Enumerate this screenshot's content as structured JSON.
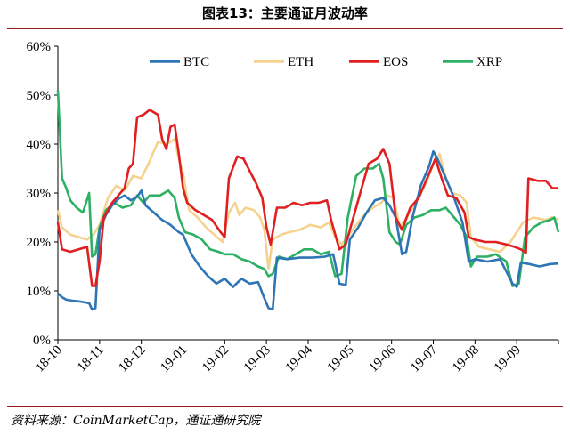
{
  "header": {
    "title": "图表13：主要通证月波动率"
  },
  "footer": {
    "source": "资料来源：CoinMarketCap，通证通研究院"
  },
  "colors": {
    "BTC": "#2e75b6",
    "ETH": "#f5d28e",
    "EOS": "#e02020",
    "XRP": "#2db063",
    "rule": "#9a1b1e"
  },
  "chart_data": {
    "type": "line",
    "title": "图表13：主要通证月波动率",
    "xlabel": "",
    "ylabel": "",
    "x_ticks": [
      "18-10",
      "18-11",
      "18-12",
      "19-01",
      "19-02",
      "19-03",
      "19-04",
      "19-05",
      "19-06",
      "19-07",
      "19-08",
      "19-09"
    ],
    "y_ticks": [
      "0%",
      "10%",
      "20%",
      "30%",
      "40%",
      "50%",
      "60%"
    ],
    "ylim": [
      0,
      60
    ],
    "xlim": [
      0,
      12
    ],
    "grid": false,
    "legend_position": "top",
    "series": [
      {
        "name": "BTC",
        "color": "#2e75b6",
        "points": [
          [
            0,
            9.5
          ],
          [
            0.1,
            8.7
          ],
          [
            0.2,
            8.2
          ],
          [
            0.35,
            8.0
          ],
          [
            0.55,
            7.8
          ],
          [
            0.75,
            7.5
          ],
          [
            0.82,
            6.2
          ],
          [
            0.9,
            6.5
          ],
          [
            1.0,
            22.5
          ],
          [
            1.15,
            25.5
          ],
          [
            1.3,
            27.5
          ],
          [
            1.45,
            28.8
          ],
          [
            1.6,
            29.5
          ],
          [
            1.75,
            28.5
          ],
          [
            1.9,
            29.2
          ],
          [
            2.0,
            30.5
          ],
          [
            2.1,
            27.5
          ],
          [
            2.3,
            26.0
          ],
          [
            2.5,
            24.5
          ],
          [
            2.7,
            23.5
          ],
          [
            2.9,
            22.0
          ],
          [
            3.0,
            21.5
          ],
          [
            3.2,
            17.5
          ],
          [
            3.4,
            15.0
          ],
          [
            3.6,
            13.0
          ],
          [
            3.8,
            11.5
          ],
          [
            4.0,
            12.5
          ],
          [
            4.2,
            10.8
          ],
          [
            4.4,
            12.5
          ],
          [
            4.6,
            11.5
          ],
          [
            4.8,
            11.8
          ],
          [
            4.95,
            8.5
          ],
          [
            5.05,
            6.5
          ],
          [
            5.15,
            6.2
          ],
          [
            5.25,
            16.8
          ],
          [
            5.5,
            16.5
          ],
          [
            5.8,
            16.8
          ],
          [
            6.1,
            16.8
          ],
          [
            6.4,
            17.0
          ],
          [
            6.6,
            17.5
          ],
          [
            6.75,
            11.5
          ],
          [
            6.9,
            11.2
          ],
          [
            7.0,
            20.5
          ],
          [
            7.2,
            23.0
          ],
          [
            7.4,
            26.0
          ],
          [
            7.6,
            28.5
          ],
          [
            7.8,
            29.0
          ],
          [
            7.95,
            27.5
          ],
          [
            8.1,
            25.0
          ],
          [
            8.25,
            17.5
          ],
          [
            8.35,
            18.0
          ],
          [
            8.5,
            25.0
          ],
          [
            8.7,
            31.5
          ],
          [
            8.9,
            35.5
          ],
          [
            9.0,
            38.5
          ],
          [
            9.1,
            37.0
          ],
          [
            9.3,
            33.0
          ],
          [
            9.5,
            29.0
          ],
          [
            9.7,
            24.0
          ],
          [
            9.85,
            16.0
          ],
          [
            10.0,
            16.5
          ],
          [
            10.3,
            16.0
          ],
          [
            10.6,
            16.5
          ],
          [
            10.9,
            11.5
          ],
          [
            11.0,
            10.8
          ],
          [
            11.1,
            15.8
          ],
          [
            11.3,
            15.5
          ],
          [
            11.55,
            15.0
          ],
          [
            11.8,
            15.5
          ],
          [
            12.0,
            15.6
          ]
        ]
      },
      {
        "name": "ETH",
        "color": "#f5d28e",
        "points": [
          [
            0,
            26.5
          ],
          [
            0.1,
            23.0
          ],
          [
            0.3,
            21.5
          ],
          [
            0.5,
            21.0
          ],
          [
            0.7,
            20.5
          ],
          [
            0.85,
            21.5
          ],
          [
            1.0,
            23.5
          ],
          [
            1.2,
            29.0
          ],
          [
            1.4,
            31.5
          ],
          [
            1.6,
            30.5
          ],
          [
            1.8,
            33.5
          ],
          [
            2.0,
            33.0
          ],
          [
            2.2,
            36.5
          ],
          [
            2.4,
            40.5
          ],
          [
            2.6,
            40.0
          ],
          [
            2.8,
            41.0
          ],
          [
            2.9,
            37.0
          ],
          [
            3.0,
            34.0
          ],
          [
            3.15,
            26.5
          ],
          [
            3.35,
            25.0
          ],
          [
            3.55,
            23.0
          ],
          [
            3.75,
            21.5
          ],
          [
            3.95,
            20.0
          ],
          [
            4.1,
            26.0
          ],
          [
            4.25,
            28.0
          ],
          [
            4.35,
            25.5
          ],
          [
            4.5,
            27.0
          ],
          [
            4.7,
            26.5
          ],
          [
            4.85,
            25.0
          ],
          [
            4.95,
            22.5
          ],
          [
            5.05,
            14.5
          ],
          [
            5.15,
            20.5
          ],
          [
            5.35,
            21.5
          ],
          [
            5.55,
            22.0
          ],
          [
            5.8,
            22.5
          ],
          [
            6.05,
            23.5
          ],
          [
            6.3,
            23.0
          ],
          [
            6.5,
            24.0
          ],
          [
            6.65,
            21.0
          ],
          [
            6.8,
            19.5
          ],
          [
            6.95,
            21.0
          ],
          [
            7.15,
            23.5
          ],
          [
            7.35,
            25.5
          ],
          [
            7.55,
            27.0
          ],
          [
            7.75,
            28.0
          ],
          [
            7.9,
            29.5
          ],
          [
            8.05,
            29.0
          ],
          [
            8.2,
            23.0
          ],
          [
            8.4,
            25.5
          ],
          [
            8.65,
            29.0
          ],
          [
            8.85,
            32.5
          ],
          [
            9.0,
            36.0
          ],
          [
            9.15,
            38.0
          ],
          [
            9.3,
            33.0
          ],
          [
            9.45,
            30.0
          ],
          [
            9.65,
            29.5
          ],
          [
            9.8,
            28.0
          ],
          [
            9.9,
            21.0
          ],
          [
            10.1,
            19.0
          ],
          [
            10.35,
            18.5
          ],
          [
            10.6,
            18.0
          ],
          [
            10.85,
            20.0
          ],
          [
            11.0,
            22.0
          ],
          [
            11.15,
            24.0
          ],
          [
            11.4,
            25.0
          ],
          [
            11.7,
            24.5
          ],
          [
            11.85,
            25.0
          ],
          [
            12.0,
            24.5
          ]
        ]
      },
      {
        "name": "EOS",
        "color": "#e02020",
        "points": [
          [
            0,
            24.0
          ],
          [
            0.1,
            18.5
          ],
          [
            0.3,
            18.0
          ],
          [
            0.5,
            18.5
          ],
          [
            0.7,
            19.0
          ],
          [
            0.82,
            11.0
          ],
          [
            0.9,
            11.0
          ],
          [
            1.0,
            16.0
          ],
          [
            1.1,
            25.0
          ],
          [
            1.3,
            28.0
          ],
          [
            1.45,
            29.5
          ],
          [
            1.6,
            31.0
          ],
          [
            1.7,
            35.0
          ],
          [
            1.8,
            36.0
          ],
          [
            1.9,
            45.5
          ],
          [
            2.05,
            46.0
          ],
          [
            2.2,
            47.0
          ],
          [
            2.4,
            46.0
          ],
          [
            2.5,
            41.0
          ],
          [
            2.6,
            39.0
          ],
          [
            2.7,
            43.5
          ],
          [
            2.8,
            44.0
          ],
          [
            2.9,
            38.0
          ],
          [
            3.0,
            31.0
          ],
          [
            3.1,
            28.0
          ],
          [
            3.3,
            26.5
          ],
          [
            3.5,
            25.5
          ],
          [
            3.7,
            24.5
          ],
          [
            3.9,
            22.0
          ],
          [
            4.0,
            21.0
          ],
          [
            4.1,
            33.0
          ],
          [
            4.3,
            37.5
          ],
          [
            4.45,
            37.0
          ],
          [
            4.6,
            34.5
          ],
          [
            4.75,
            32.0
          ],
          [
            4.9,
            29.0
          ],
          [
            5.0,
            23.0
          ],
          [
            5.1,
            19.5
          ],
          [
            5.25,
            27.0
          ],
          [
            5.45,
            27.0
          ],
          [
            5.65,
            28.0
          ],
          [
            5.85,
            27.5
          ],
          [
            6.05,
            28.0
          ],
          [
            6.25,
            28.0
          ],
          [
            6.45,
            28.5
          ],
          [
            6.55,
            24.5
          ],
          [
            6.75,
            18.5
          ],
          [
            6.9,
            19.5
          ],
          [
            7.05,
            24.0
          ],
          [
            7.25,
            30.0
          ],
          [
            7.45,
            36.0
          ],
          [
            7.65,
            37.0
          ],
          [
            7.8,
            39.0
          ],
          [
            7.95,
            36.0
          ],
          [
            8.1,
            25.0
          ],
          [
            8.25,
            22.5
          ],
          [
            8.45,
            27.0
          ],
          [
            8.65,
            29.0
          ],
          [
            8.85,
            33.0
          ],
          [
            9.05,
            37.0
          ],
          [
            9.2,
            33.0
          ],
          [
            9.35,
            29.5
          ],
          [
            9.55,
            29.0
          ],
          [
            9.75,
            26.0
          ],
          [
            9.85,
            21.0
          ],
          [
            10.0,
            20.5
          ],
          [
            10.25,
            20.0
          ],
          [
            10.5,
            20.0
          ],
          [
            10.75,
            19.5
          ],
          [
            10.95,
            19.0
          ],
          [
            11.1,
            18.5
          ],
          [
            11.22,
            17.8
          ],
          [
            11.28,
            33.0
          ],
          [
            11.5,
            32.5
          ],
          [
            11.7,
            32.5
          ],
          [
            11.85,
            31.0
          ],
          [
            12.0,
            31.0
          ]
        ]
      },
      {
        "name": "XRP",
        "color": "#2db063",
        "points": [
          [
            0,
            51.0
          ],
          [
            0.1,
            33.0
          ],
          [
            0.2,
            31.0
          ],
          [
            0.3,
            28.5
          ],
          [
            0.45,
            27.0
          ],
          [
            0.6,
            26.0
          ],
          [
            0.75,
            30.0
          ],
          [
            0.82,
            17.0
          ],
          [
            0.9,
            17.5
          ],
          [
            1.0,
            23.0
          ],
          [
            1.15,
            26.5
          ],
          [
            1.35,
            28.0
          ],
          [
            1.55,
            27.0
          ],
          [
            1.75,
            27.5
          ],
          [
            1.9,
            29.5
          ],
          [
            2.05,
            28.0
          ],
          [
            2.2,
            29.5
          ],
          [
            2.45,
            29.5
          ],
          [
            2.65,
            30.5
          ],
          [
            2.8,
            29.0
          ],
          [
            2.9,
            25.0
          ],
          [
            3.05,
            22.0
          ],
          [
            3.25,
            21.5
          ],
          [
            3.45,
            20.5
          ],
          [
            3.65,
            18.5
          ],
          [
            3.85,
            18.0
          ],
          [
            4.0,
            17.5
          ],
          [
            4.2,
            17.5
          ],
          [
            4.4,
            16.5
          ],
          [
            4.6,
            16.0
          ],
          [
            4.8,
            15.0
          ],
          [
            4.95,
            14.5
          ],
          [
            5.05,
            13.0
          ],
          [
            5.15,
            13.5
          ],
          [
            5.3,
            17.0
          ],
          [
            5.5,
            16.5
          ],
          [
            5.7,
            17.5
          ],
          [
            5.9,
            18.5
          ],
          [
            6.1,
            18.5
          ],
          [
            6.3,
            17.5
          ],
          [
            6.5,
            18.0
          ],
          [
            6.65,
            13.0
          ],
          [
            6.8,
            13.5
          ],
          [
            6.95,
            25.0
          ],
          [
            7.15,
            33.5
          ],
          [
            7.35,
            35.0
          ],
          [
            7.55,
            35.0
          ],
          [
            7.7,
            36.0
          ],
          [
            7.8,
            33.0
          ],
          [
            7.95,
            22.0
          ],
          [
            8.1,
            20.0
          ],
          [
            8.2,
            19.5
          ],
          [
            8.35,
            23.5
          ],
          [
            8.55,
            25.0
          ],
          [
            8.75,
            25.5
          ],
          [
            8.95,
            26.5
          ],
          [
            9.15,
            26.5
          ],
          [
            9.3,
            27.0
          ],
          [
            9.5,
            25.0
          ],
          [
            9.65,
            23.5
          ],
          [
            9.8,
            21.0
          ],
          [
            9.9,
            15.0
          ],
          [
            10.05,
            17.0
          ],
          [
            10.3,
            17.0
          ],
          [
            10.5,
            17.5
          ],
          [
            10.75,
            16.0
          ],
          [
            10.9,
            11.0
          ],
          [
            11.05,
            11.5
          ],
          [
            11.2,
            21.0
          ],
          [
            11.4,
            23.0
          ],
          [
            11.6,
            24.0
          ],
          [
            11.8,
            24.5
          ],
          [
            11.9,
            25.0
          ],
          [
            12.0,
            22.0
          ]
        ]
      }
    ]
  }
}
